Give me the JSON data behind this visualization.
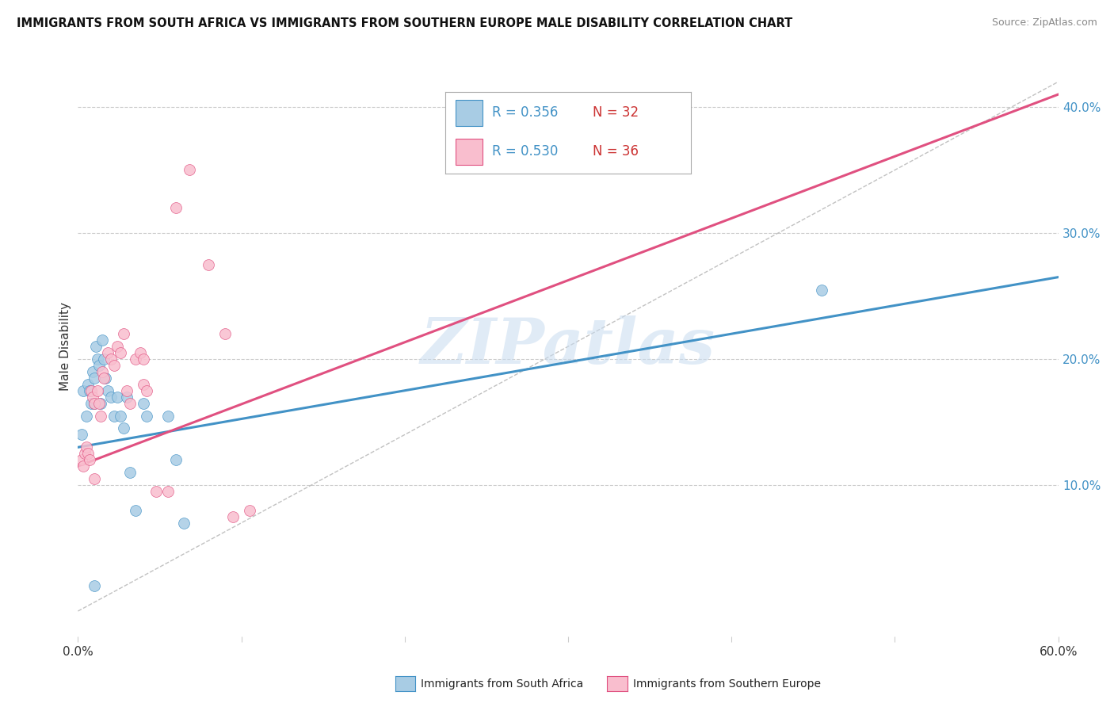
{
  "title": "IMMIGRANTS FROM SOUTH AFRICA VS IMMIGRANTS FROM SOUTHERN EUROPE MALE DISABILITY CORRELATION CHART",
  "source": "Source: ZipAtlas.com",
  "ylabel": "Male Disability",
  "xlim": [
    0.0,
    0.6
  ],
  "ylim": [
    -0.02,
    0.44
  ],
  "ylim_data": [
    0.0,
    0.42
  ],
  "xticks": [
    0.0,
    0.1,
    0.2,
    0.3,
    0.4,
    0.5,
    0.6
  ],
  "xtick_labels_bottom": [
    "0.0%",
    "",
    "",
    "",
    "",
    "",
    "60.0%"
  ],
  "yticks_right": [
    0.1,
    0.2,
    0.3,
    0.4
  ],
  "ytick_labels_right": [
    "10.0%",
    "20.0%",
    "30.0%",
    "40.0%"
  ],
  "legend_r1": "R = 0.356",
  "legend_n1": "N = 32",
  "legend_r2": "R = 0.530",
  "legend_n2": "N = 36",
  "color_blue": "#a8cce4",
  "color_pink": "#f9bece",
  "color_blue_line": "#4292c6",
  "color_pink_line": "#e05080",
  "color_blue_dark": "#4292c6",
  "color_pink_dark": "#e05080",
  "color_legend_text_blue": "#4292c6",
  "color_legend_text_red": "#cc3333",
  "legend_label1": "Immigrants from South Africa",
  "legend_label2": "Immigrants from Southern Europe",
  "scatter_blue_x": [
    0.002,
    0.003,
    0.005,
    0.006,
    0.007,
    0.008,
    0.009,
    0.01,
    0.01,
    0.011,
    0.012,
    0.013,
    0.014,
    0.015,
    0.016,
    0.017,
    0.018,
    0.02,
    0.022,
    0.024,
    0.026,
    0.028,
    0.03,
    0.032,
    0.035,
    0.04,
    0.042,
    0.055,
    0.06,
    0.065,
    0.455,
    0.01
  ],
  "scatter_blue_y": [
    0.14,
    0.175,
    0.155,
    0.18,
    0.175,
    0.165,
    0.19,
    0.185,
    0.165,
    0.21,
    0.2,
    0.195,
    0.165,
    0.215,
    0.2,
    0.185,
    0.175,
    0.17,
    0.155,
    0.17,
    0.155,
    0.145,
    0.17,
    0.11,
    0.08,
    0.165,
    0.155,
    0.155,
    0.12,
    0.07,
    0.255,
    0.02
  ],
  "scatter_pink_x": [
    0.002,
    0.003,
    0.004,
    0.005,
    0.006,
    0.007,
    0.008,
    0.009,
    0.01,
    0.012,
    0.013,
    0.014,
    0.015,
    0.016,
    0.018,
    0.02,
    0.022,
    0.024,
    0.026,
    0.028,
    0.03,
    0.032,
    0.035,
    0.038,
    0.04,
    0.042,
    0.048,
    0.055,
    0.06,
    0.068,
    0.08,
    0.09,
    0.095,
    0.105,
    0.04,
    0.01
  ],
  "scatter_pink_y": [
    0.12,
    0.115,
    0.125,
    0.13,
    0.125,
    0.12,
    0.175,
    0.17,
    0.165,
    0.175,
    0.165,
    0.155,
    0.19,
    0.185,
    0.205,
    0.2,
    0.195,
    0.21,
    0.205,
    0.22,
    0.175,
    0.165,
    0.2,
    0.205,
    0.18,
    0.175,
    0.095,
    0.095,
    0.32,
    0.35,
    0.275,
    0.22,
    0.075,
    0.08,
    0.2,
    0.105
  ],
  "blue_line_x": [
    0.0,
    0.6
  ],
  "blue_line_y": [
    0.13,
    0.265
  ],
  "pink_line_x": [
    0.0,
    0.6
  ],
  "pink_line_y": [
    0.115,
    0.41
  ],
  "diag_line_x": [
    0.0,
    0.6
  ],
  "diag_line_y": [
    0.0,
    0.42
  ],
  "watermark": "ZIPatlas",
  "background_color": "#ffffff",
  "grid_color": "#cccccc"
}
